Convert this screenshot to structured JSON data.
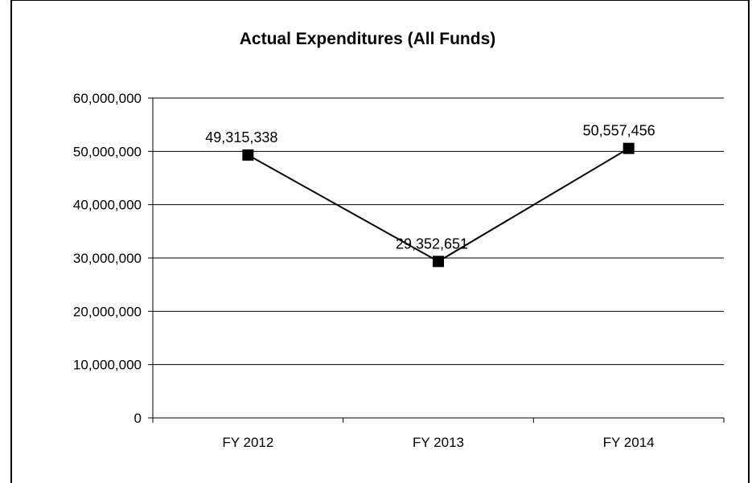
{
  "chart_data": {
    "type": "line",
    "title": "Actual Expenditures (All Funds)",
    "xlabel": "",
    "ylabel": "",
    "categories": [
      "FY 2012",
      "FY 2013",
      "FY 2014"
    ],
    "series": [
      {
        "values": [
          49315338,
          29352651,
          50557456
        ],
        "data_labels": [
          "49,315,338",
          "29,352,651",
          "50,557,456"
        ],
        "color": "#000000",
        "marker": "square"
      }
    ],
    "ylim": [
      0,
      60000000
    ],
    "y_ticks": [
      0,
      10000000,
      20000000,
      30000000,
      40000000,
      50000000,
      60000000
    ],
    "y_tick_labels": [
      "0",
      "10,000,000",
      "20,000,000",
      "30,000,000",
      "40,000,000",
      "50,000,000",
      "60,000,000"
    ],
    "grid": true,
    "legend": "none"
  }
}
